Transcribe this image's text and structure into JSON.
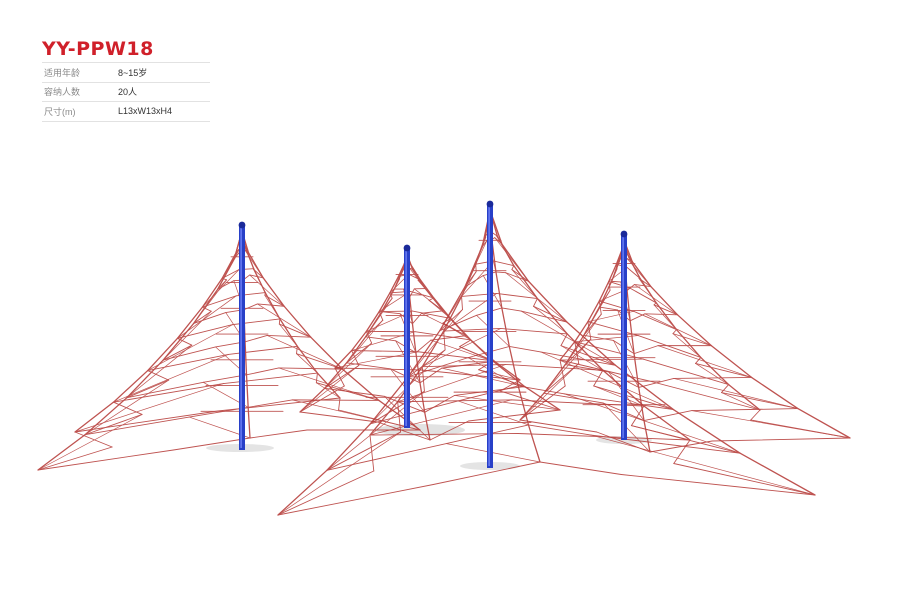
{
  "product": {
    "model": "YY-PPW18"
  },
  "specs": [
    {
      "label": "适用年龄",
      "value": "8~15岁"
    },
    {
      "label": "容纳人数",
      "value": "20人"
    },
    {
      "label": "尺寸(m)",
      "value": "L13xW13xH4"
    }
  ],
  "illustration": {
    "icon": "pyramid-rope-net-icon",
    "rope_color": "#b8413e",
    "pole_color": "#2840c8",
    "tower_count": 4
  }
}
